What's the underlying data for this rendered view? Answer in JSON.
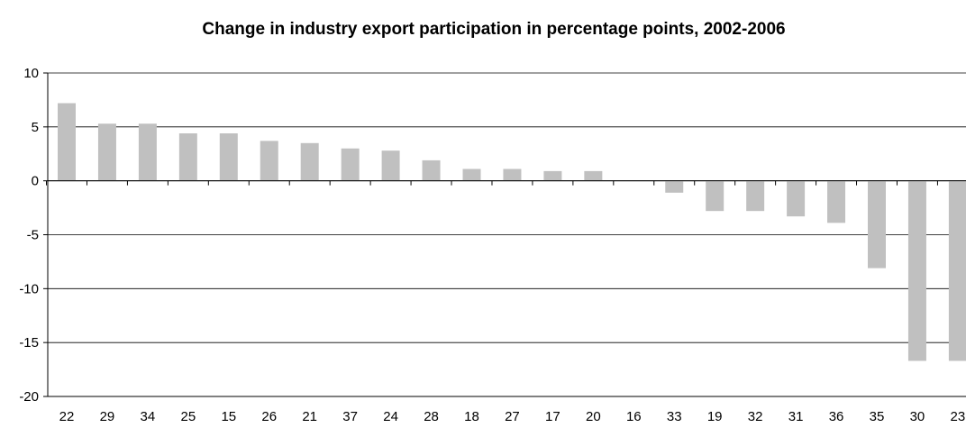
{
  "chart_data": {
    "type": "bar",
    "title": "Change in industry export participation in percentage points, 2002-2006",
    "xlabel": "",
    "ylabel": "",
    "ylim": [
      -20,
      10
    ],
    "yticks": [
      10,
      5,
      0,
      -5,
      -10,
      -15,
      -20
    ],
    "grid": true,
    "legend": "none",
    "bar_color": "#c0c0c0",
    "categories": [
      "22",
      "29",
      "34",
      "25",
      "15",
      "26",
      "21",
      "37",
      "24",
      "28",
      "18",
      "27",
      "17",
      "20",
      "16",
      "33",
      "19",
      "32",
      "31",
      "36",
      "35",
      "30",
      "23"
    ],
    "values": [
      7.2,
      5.3,
      5.3,
      4.4,
      4.4,
      3.7,
      3.5,
      3.0,
      2.8,
      1.9,
      1.1,
      1.1,
      0.9,
      0.9,
      0.0,
      -1.1,
      -2.8,
      -2.8,
      -3.3,
      -3.9,
      -8.1,
      -16.7,
      -16.7
    ]
  }
}
